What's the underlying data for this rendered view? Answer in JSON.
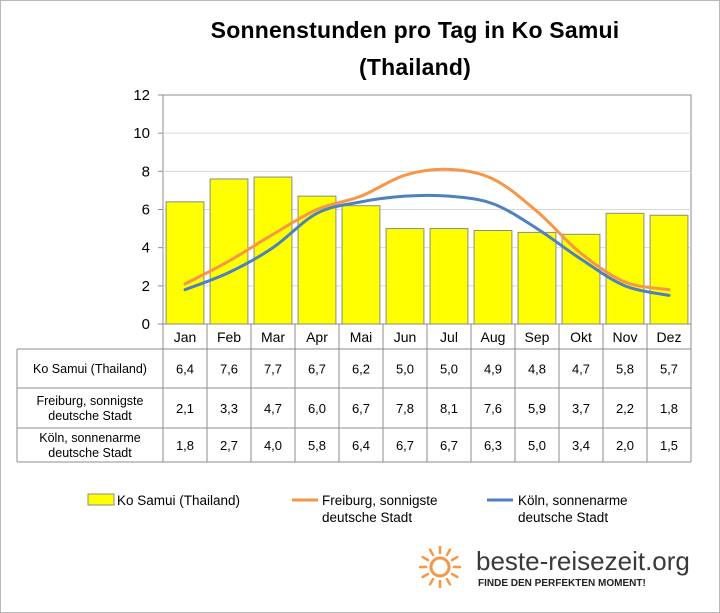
{
  "chart_data": {
    "type": "bar",
    "title_line1": "Sonnenstunden pro Tag in Ko Samui",
    "title_line2": "(Thailand)",
    "ylim": [
      0,
      12
    ],
    "yticks": [
      0,
      2,
      4,
      6,
      8,
      10,
      12
    ],
    "grid": true,
    "categories": [
      "Jan",
      "Feb",
      "Mar",
      "Apr",
      "Mai",
      "Jun",
      "Jul",
      "Aug",
      "Sep",
      "Okt",
      "Nov",
      "Dez"
    ],
    "series": [
      {
        "name": "Ko Samui (Thailand)",
        "type": "bar",
        "color": "#ffff00",
        "values": [
          6.4,
          7.6,
          7.7,
          6.7,
          6.2,
          5.0,
          5.0,
          4.9,
          4.8,
          4.7,
          5.8,
          5.7
        ],
        "labels": [
          "6,4",
          "7,6",
          "7,7",
          "6,7",
          "6,2",
          "5,0",
          "5,0",
          "4,9",
          "4,8",
          "4,7",
          "5,8",
          "5,7"
        ]
      },
      {
        "name": "Freiburg, sonnigste deutsche Stadt",
        "name_lines": [
          "Freiburg, sonnigste",
          "deutsche Stadt"
        ],
        "type": "line",
        "color": "#f79646",
        "values": [
          2.1,
          3.3,
          4.7,
          6.0,
          6.7,
          7.8,
          8.1,
          7.6,
          5.9,
          3.7,
          2.2,
          1.8
        ],
        "labels": [
          "2,1",
          "3,3",
          "4,7",
          "6,0",
          "6,7",
          "7,8",
          "8,1",
          "7,6",
          "5,9",
          "3,7",
          "2,2",
          "1,8"
        ]
      },
      {
        "name": "Köln, sonnenarme deutsche Stadt",
        "name_lines": [
          "Köln, sonnenarme",
          "deutsche Stadt"
        ],
        "type": "line",
        "color": "#4f81bd",
        "values": [
          1.8,
          2.7,
          4.0,
          5.8,
          6.4,
          6.7,
          6.7,
          6.3,
          5.0,
          3.4,
          2.0,
          1.5
        ],
        "labels": [
          "1,8",
          "2,7",
          "4,0",
          "5,8",
          "6,4",
          "6,7",
          "6,7",
          "6,3",
          "5,0",
          "3,4",
          "2,0",
          "1,5"
        ]
      }
    ],
    "legend_position": "bottom",
    "data_table": true
  },
  "branding": {
    "logo_text": "beste-reisezeit.org",
    "logo_tagline": "FINDE DEN PERFEKTEN MOMENT!",
    "sun_color": "#f79646"
  }
}
